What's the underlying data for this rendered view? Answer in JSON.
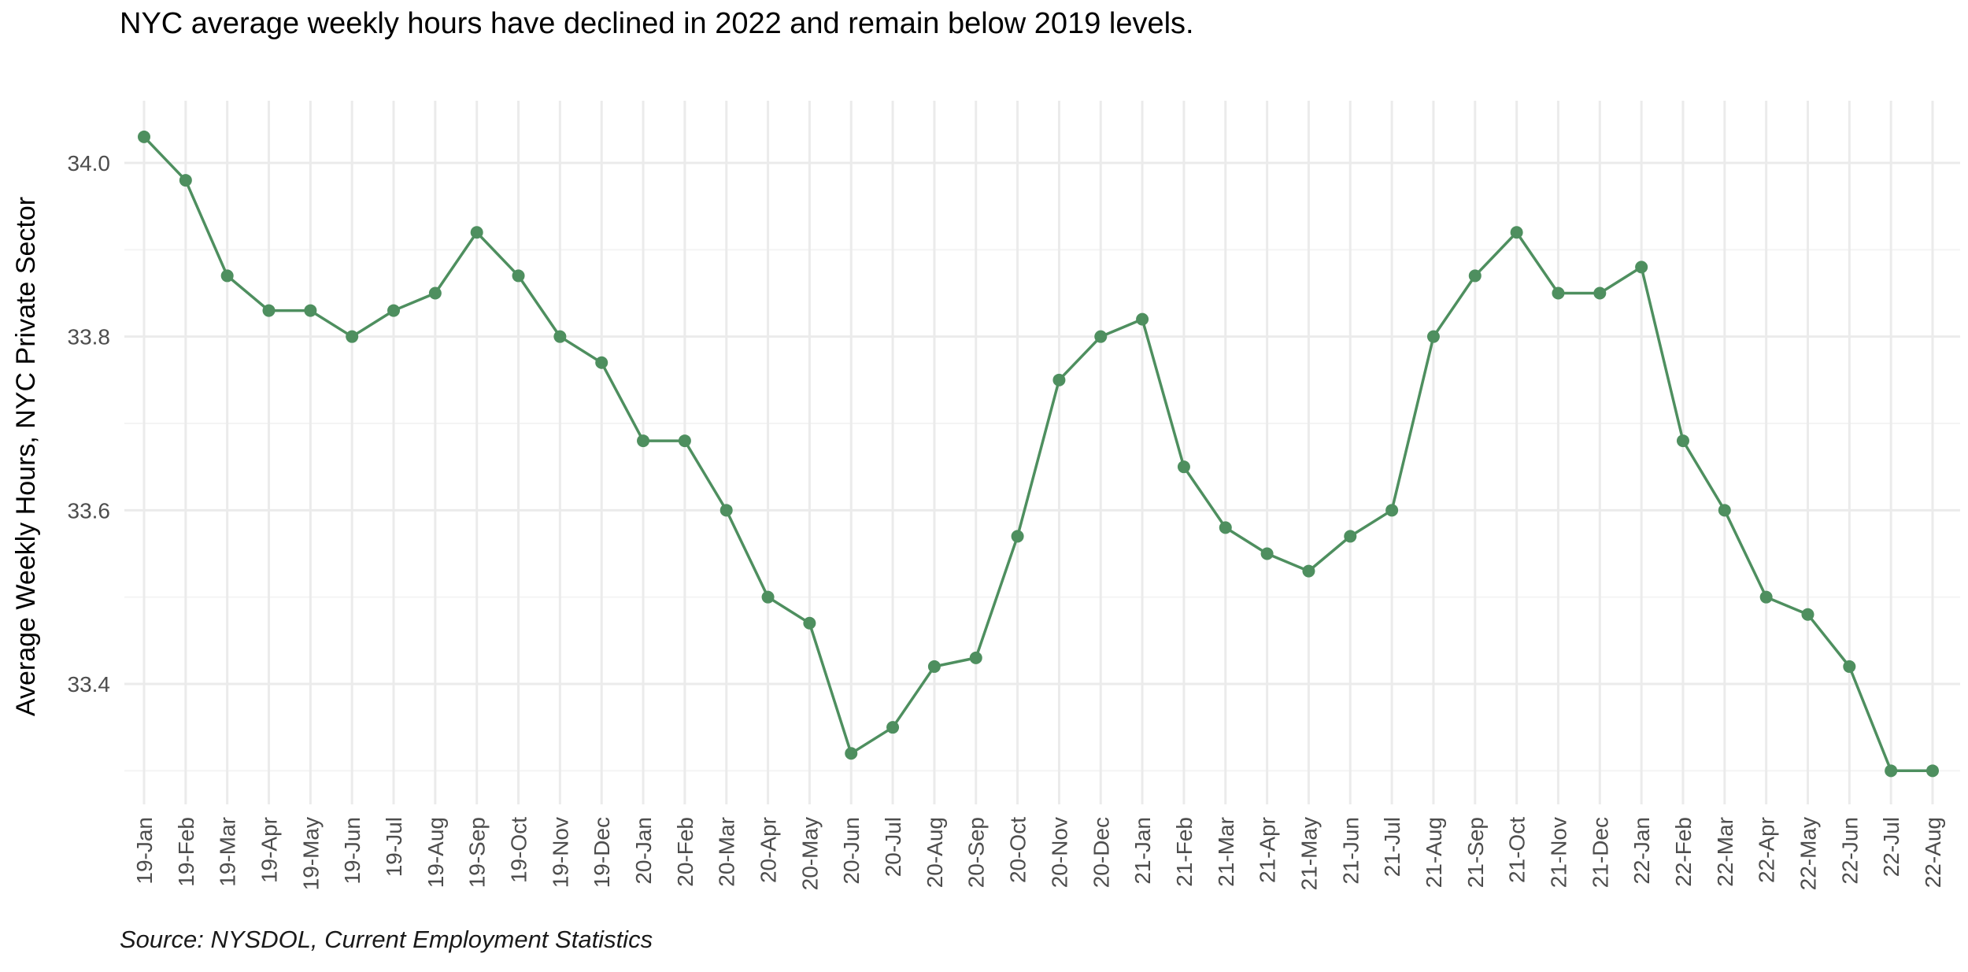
{
  "title": "NYC average weekly hours have declined in 2022 and remain below 2019 levels.",
  "caption": "Source: NYSDOL, Current Employment Statistics",
  "colors": {
    "line": "#4e8f5f",
    "point": "#4e8f5f",
    "grid_major": "#ebebeb",
    "grid_minor": "#f4f4f4",
    "tick_label": "#4d4d4d"
  },
  "chart_data": {
    "type": "line",
    "title": "NYC average weekly hours have declined in 2022 and remain below 2019 levels.",
    "xlabel": "",
    "ylabel": "Average Weekly Hours, NYC Private Sector",
    "ylim": [
      33.27,
      34.06
    ],
    "yticks": [
      33.4,
      33.6,
      33.8,
      34.0
    ],
    "ytick_labels": [
      "33.4",
      "33.6",
      "33.8",
      "34.0"
    ],
    "grid": true,
    "legend": "none",
    "x_tick_rotation": -90,
    "categories": [
      "19-Jan",
      "19-Feb",
      "19-Mar",
      "19-Apr",
      "19-May",
      "19-Jun",
      "19-Jul",
      "19-Aug",
      "19-Sep",
      "19-Oct",
      "19-Nov",
      "19-Dec",
      "20-Jan",
      "20-Feb",
      "20-Mar",
      "20-Apr",
      "20-May",
      "20-Jun",
      "20-Jul",
      "20-Aug",
      "20-Sep",
      "20-Oct",
      "20-Nov",
      "20-Dec",
      "21-Jan",
      "21-Feb",
      "21-Mar",
      "21-Apr",
      "21-May",
      "21-Jun",
      "21-Jul",
      "21-Aug",
      "21-Sep",
      "21-Oct",
      "21-Nov",
      "21-Dec",
      "22-Jan",
      "22-Feb",
      "22-Mar",
      "22-Apr",
      "22-May",
      "22-Jun",
      "22-Jul",
      "22-Aug"
    ],
    "series": [
      {
        "values": [
          34.03,
          33.98,
          33.87,
          33.83,
          33.83,
          33.8,
          33.83,
          33.85,
          33.92,
          33.87,
          33.8,
          33.77,
          33.68,
          33.68,
          33.6,
          33.5,
          33.47,
          33.32,
          33.35,
          33.42,
          33.43,
          33.57,
          33.75,
          33.8,
          33.82,
          33.65,
          33.58,
          33.55,
          33.53,
          33.57,
          33.6,
          33.8,
          33.87,
          33.92,
          33.85,
          33.85,
          33.88,
          33.68,
          33.6,
          33.5,
          33.48,
          33.42,
          33.3,
          33.3
        ]
      }
    ]
  }
}
